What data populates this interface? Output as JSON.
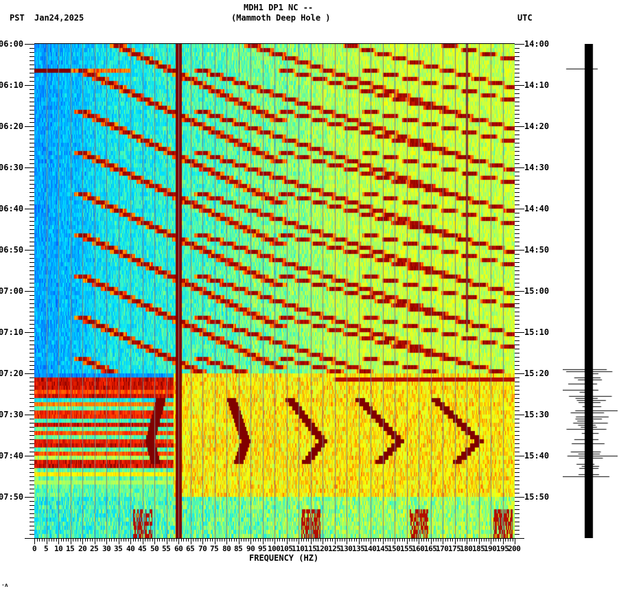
{
  "header": {
    "station_line": "MDH1 DP1 NC --",
    "station_name": "(Mammoth Deep Hole )",
    "left_timezone": "PST",
    "date": "Jan24,2025",
    "right_timezone": "UTC"
  },
  "footer_mark": "·ʌ",
  "chart_data": {
    "type": "heatmap",
    "title": "MDH1 DP1 NC -- (Mammoth Deep Hole )",
    "subtitle": "Jan24,2025",
    "xlabel": "FREQUENCY (HZ)",
    "ylabel_left": "PST",
    "ylabel_right": "UTC",
    "xlim": [
      0,
      200
    ],
    "x_ticks": [
      "0",
      "5",
      "10",
      "15",
      "20",
      "25",
      "30",
      "35",
      "40",
      "45",
      "50",
      "55",
      "60",
      "65",
      "70",
      "75",
      "80",
      "85",
      "90",
      "95",
      "100",
      "105",
      "110",
      "115",
      "120",
      "125",
      "130",
      "135",
      "140",
      "145",
      "150",
      "155",
      "160",
      "165",
      "170",
      "175",
      "180",
      "185",
      "190",
      "195",
      "200"
    ],
    "y_ticks_left": [
      "06:00",
      "06:10",
      "06:20",
      "06:30",
      "06:40",
      "06:50",
      "07:00",
      "07:10",
      "07:20",
      "07:30",
      "07:40",
      "07:50"
    ],
    "y_ticks_right": [
      "14:00",
      "14:10",
      "14:20",
      "14:30",
      "14:40",
      "14:50",
      "15:00",
      "15:10",
      "15:20",
      "15:30",
      "15:40",
      "15:50"
    ],
    "time_range_pst": [
      "06:00",
      "08:00"
    ],
    "time_range_utc": [
      "14:00",
      "16:00"
    ],
    "colormap": [
      "#0050ff",
      "#00a0ff",
      "#00e5ff",
      "#60ffa0",
      "#d0ff40",
      "#ffff00",
      "#ffa000",
      "#ff2000",
      "#800000"
    ],
    "persistent_lines_hz": [
      60,
      180
    ],
    "line_60hz_color": "#800000",
    "noise_burst_start_pst": "07:20",
    "features": [
      {
        "type": "narrowband_line",
        "freq_hz": 60,
        "intensity": "max",
        "span": "full"
      },
      {
        "type": "narrowband_line",
        "freq_hz": 180,
        "intensity": "high",
        "span": "06:00-07:10"
      },
      {
        "type": "repeating_upsweep_harmonics",
        "period_min": 10,
        "span": "06:00-07:20",
        "start_freq_hz": 20
      },
      {
        "type": "broadband_bands",
        "freq_range_hz": [
          0,
          60
        ],
        "span": "07:20-07:48"
      },
      {
        "type": "wandering_tones",
        "freq_hz": [
          35,
          75,
          110,
          140,
          175
        ],
        "span": "07:26-07:45"
      }
    ]
  },
  "seismogram": {
    "color": "#000000",
    "burst_window_pst": "07:20-07:44"
  }
}
